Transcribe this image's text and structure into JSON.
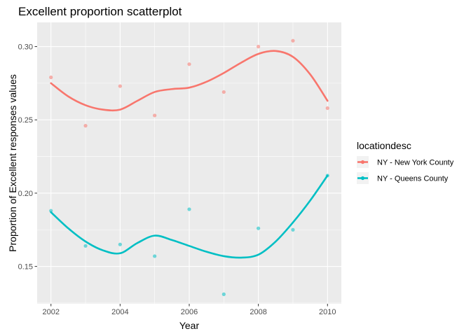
{
  "chart_data": {
    "type": "scatter",
    "title": "Excellent proportion scatterplot",
    "xlabel": "Year",
    "ylabel": "Proportion of Excellent responses values",
    "xlim": [
      2001.6,
      2010.4
    ],
    "ylim": [
      0.1245,
      0.3165
    ],
    "x_ticks": [
      2002,
      2004,
      2006,
      2008,
      2010
    ],
    "x_tick_labels": [
      "2002",
      "2004",
      "2006",
      "2008",
      "2010"
    ],
    "y_ticks": [
      0.15,
      0.2,
      0.25,
      0.3
    ],
    "y_tick_labels": [
      "0.15",
      "0.20",
      "0.25",
      "0.30"
    ],
    "grid": true,
    "legend": {
      "title": "locationdesc",
      "position": "right"
    },
    "series": [
      {
        "name": "NY - New York County",
        "color": "#F8766D",
        "points": [
          {
            "x": 2002,
            "y": 0.279
          },
          {
            "x": 2003,
            "y": 0.246
          },
          {
            "x": 2004,
            "y": 0.273
          },
          {
            "x": 2005,
            "y": 0.253
          },
          {
            "x": 2006,
            "y": 0.288
          },
          {
            "x": 2007,
            "y": 0.269
          },
          {
            "x": 2008,
            "y": 0.3
          },
          {
            "x": 2009,
            "y": 0.304
          },
          {
            "x": 2010,
            "y": 0.258
          }
        ],
        "smooth": [
          {
            "x": 2002,
            "y": 0.275
          },
          {
            "x": 2002.5,
            "y": 0.266
          },
          {
            "x": 2003,
            "y": 0.26
          },
          {
            "x": 2003.5,
            "y": 0.257
          },
          {
            "x": 2004,
            "y": 0.257
          },
          {
            "x": 2004.5,
            "y": 0.263
          },
          {
            "x": 2005,
            "y": 0.269
          },
          {
            "x": 2005.5,
            "y": 0.271
          },
          {
            "x": 2006,
            "y": 0.272
          },
          {
            "x": 2006.5,
            "y": 0.276
          },
          {
            "x": 2007,
            "y": 0.282
          },
          {
            "x": 2007.5,
            "y": 0.289
          },
          {
            "x": 2008,
            "y": 0.295
          },
          {
            "x": 2008.5,
            "y": 0.297
          },
          {
            "x": 2009,
            "y": 0.293
          },
          {
            "x": 2009.5,
            "y": 0.281
          },
          {
            "x": 2010,
            "y": 0.263
          }
        ]
      },
      {
        "name": "NY - Queens County",
        "color": "#00BFC4",
        "points": [
          {
            "x": 2002,
            "y": 0.188
          },
          {
            "x": 2003,
            "y": 0.164
          },
          {
            "x": 2004,
            "y": 0.165
          },
          {
            "x": 2005,
            "y": 0.157
          },
          {
            "x": 2006,
            "y": 0.189
          },
          {
            "x": 2007,
            "y": 0.131
          },
          {
            "x": 2008,
            "y": 0.176
          },
          {
            "x": 2009,
            "y": 0.175
          },
          {
            "x": 2010,
            "y": 0.212
          }
        ],
        "smooth": [
          {
            "x": 2002,
            "y": 0.187
          },
          {
            "x": 2002.5,
            "y": 0.176
          },
          {
            "x": 2003,
            "y": 0.167
          },
          {
            "x": 2003.5,
            "y": 0.161
          },
          {
            "x": 2004,
            "y": 0.159
          },
          {
            "x": 2004.5,
            "y": 0.166
          },
          {
            "x": 2005,
            "y": 0.171
          },
          {
            "x": 2005.5,
            "y": 0.168
          },
          {
            "x": 2006,
            "y": 0.164
          },
          {
            "x": 2006.5,
            "y": 0.16
          },
          {
            "x": 2007,
            "y": 0.157
          },
          {
            "x": 2007.5,
            "y": 0.156
          },
          {
            "x": 2008,
            "y": 0.158
          },
          {
            "x": 2008.5,
            "y": 0.167
          },
          {
            "x": 2009,
            "y": 0.18
          },
          {
            "x": 2009.5,
            "y": 0.195
          },
          {
            "x": 2010,
            "y": 0.212
          }
        ]
      }
    ]
  }
}
